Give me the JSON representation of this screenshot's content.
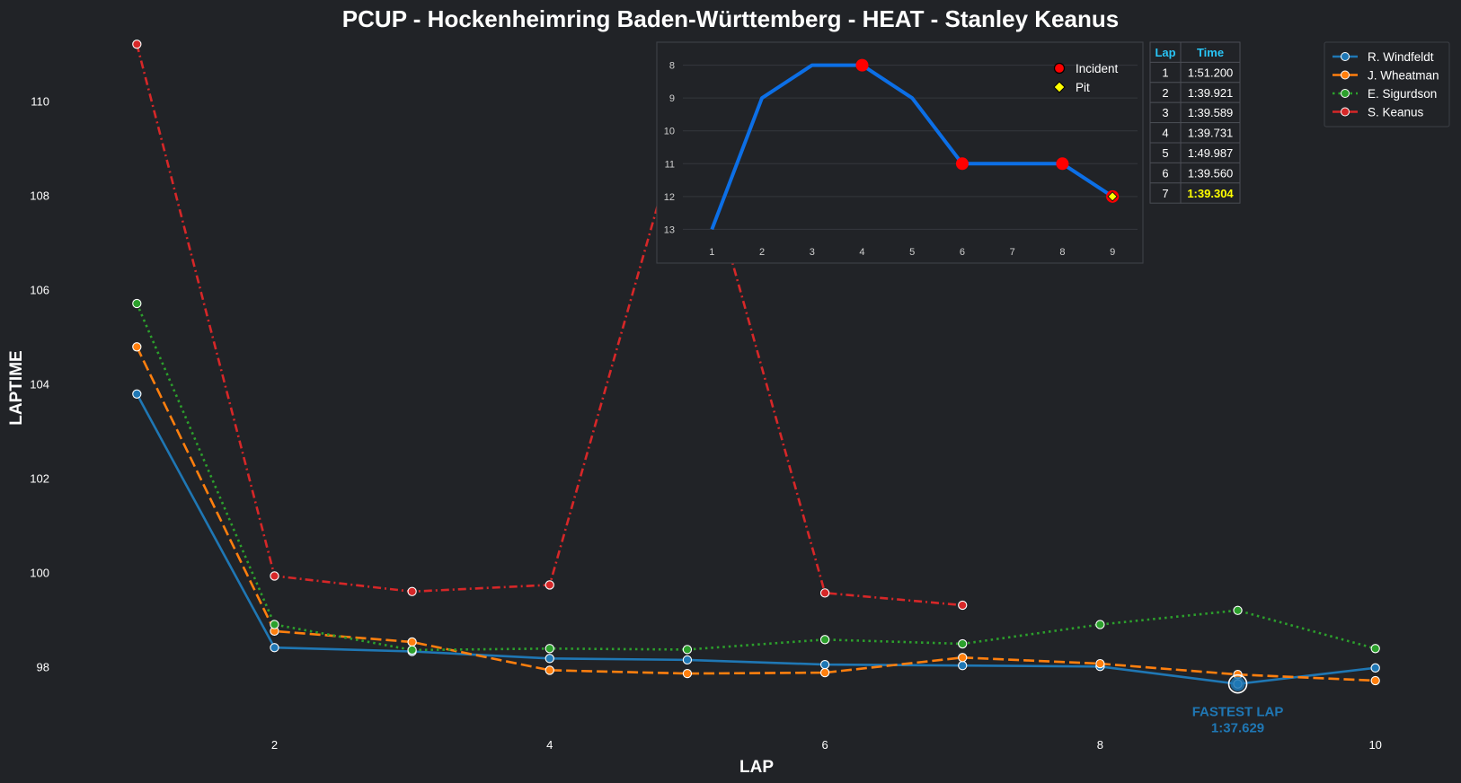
{
  "chart_data": [
    {
      "type": "line",
      "title": "PCUP - Hockenheimring Baden-Württemberg - HEAT - Stanley Keanus",
      "xlabel": "LAP",
      "ylabel": "LAPTIME",
      "xlim": [
        0.9,
        10.1
      ],
      "ylim": [
        96.5,
        111.3
      ],
      "xticks": [
        2,
        4,
        6,
        8,
        10
      ],
      "yticks": [
        98,
        100,
        102,
        104,
        106,
        108,
        110
      ],
      "grid": false,
      "legend_position": "top-right",
      "series": [
        {
          "name": "R. Windfeldt",
          "color": "#1f77b4",
          "dash": "solid",
          "x": [
            1,
            2,
            3,
            4,
            5,
            6,
            7,
            8,
            9,
            10
          ],
          "values": [
            103.78,
            98.4,
            98.32,
            98.17,
            98.14,
            98.04,
            98.02,
            98.0,
            97.63,
            97.97
          ]
        },
        {
          "name": "J. Wheatman",
          "color": "#ff7f0e",
          "dash": "dashed",
          "x": [
            1,
            2,
            3,
            4,
            5,
            6,
            7,
            8,
            9,
            10
          ],
          "values": [
            104.78,
            98.75,
            98.52,
            97.92,
            97.85,
            97.87,
            98.19,
            98.06,
            97.83,
            97.7
          ]
        },
        {
          "name": "E. Sigurdson",
          "color": "#2ca02c",
          "dash": "dotted",
          "x": [
            1,
            2,
            3,
            4,
            5,
            6,
            7,
            8,
            9,
            10
          ],
          "values": [
            105.7,
            98.89,
            98.35,
            98.38,
            98.36,
            98.57,
            98.48,
            98.89,
            99.19,
            98.38
          ]
        },
        {
          "name": "S. Keanus",
          "color": "#d62728",
          "dash": "dashdot",
          "x": [
            1,
            2,
            3,
            4,
            5,
            6,
            7
          ],
          "values": [
            111.2,
            99.92,
            99.59,
            99.73,
            109.99,
            99.56,
            99.3
          ]
        }
      ],
      "annotations": [
        {
          "text_line1": "FASTEST LAP",
          "text_line2": "1:37.629",
          "x": 9,
          "y": 97.63
        }
      ]
    },
    {
      "type": "line",
      "title": "",
      "xlabel": "",
      "ylabel": "",
      "xlim": [
        0.6,
        9.5
      ],
      "ylim": [
        13.4,
        7.6
      ],
      "y_inverted": true,
      "xticks": [
        1,
        2,
        3,
        4,
        5,
        6,
        7,
        8,
        9
      ],
      "yticks": [
        8,
        9,
        10,
        11,
        12,
        13
      ],
      "grid": true,
      "series": [
        {
          "name": "Position",
          "color": "#0c6fe6",
          "x": [
            1,
            2,
            3,
            4,
            5,
            6,
            7,
            8,
            9
          ],
          "values": [
            13,
            9,
            8,
            8,
            9,
            11,
            11,
            11,
            12
          ]
        }
      ],
      "markers": [
        {
          "type": "Incident",
          "x": 4,
          "y": 8
        },
        {
          "type": "Incident",
          "x": 6,
          "y": 11
        },
        {
          "type": "Incident",
          "x": 8,
          "y": 11
        },
        {
          "type": "Incident",
          "x": 9,
          "y": 12
        },
        {
          "type": "Pit",
          "x": 9,
          "y": 12
        }
      ],
      "legend": [
        {
          "label": "Incident",
          "color": "#ff0000"
        },
        {
          "label": "Pit",
          "color": "#ffff00"
        }
      ],
      "legend_position": "top-right"
    },
    {
      "type": "table",
      "columns": [
        "Lap",
        "Time"
      ],
      "rows": [
        [
          "1",
          "1:51.200"
        ],
        [
          "2",
          "1:39.921"
        ],
        [
          "3",
          "1:39.589"
        ],
        [
          "4",
          "1:39.731"
        ],
        [
          "5",
          "1:49.987"
        ],
        [
          "6",
          "1:39.560"
        ],
        [
          "7",
          "1:39.304"
        ]
      ],
      "best_row": 6,
      "best_color": "#ffff00"
    }
  ]
}
